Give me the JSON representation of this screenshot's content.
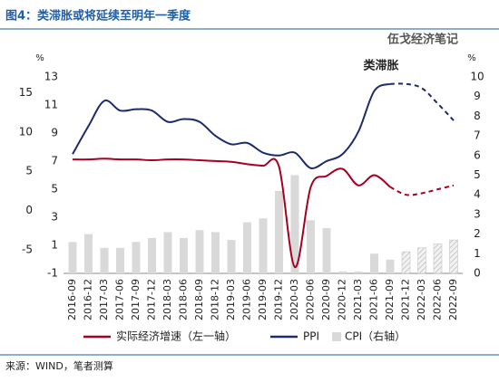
{
  "chart_data": {
    "type": "line",
    "title": "图4：类滞胀或将延续至明年一季度",
    "watermark": "伍戈经济笔记",
    "annotation": "类滞胀",
    "source": "来源：WIND，笔者测算",
    "y_unit": "%",
    "y2_unit": "%",
    "categories": [
      "2016-09",
      "2016-12",
      "2017-03",
      "2017-06",
      "2017-09",
      "2017-12",
      "2018-03",
      "2018-06",
      "2018-09",
      "2018-12",
      "2019-03",
      "2019-06",
      "2019-09",
      "2019-12",
      "2020-03",
      "2020-06",
      "2020-09",
      "2020-12",
      "2021-03",
      "2021-06",
      "2021-09",
      "2021-12",
      "2022-03",
      "2022-06",
      "2022-09"
    ],
    "forecast_from": 20,
    "series": [
      {
        "name": "实际经济增速（左一轴）",
        "color": "#a50021",
        "axis": "y3",
        "kind": "line",
        "values": [
          6.5,
          6.5,
          6.6,
          6.5,
          6.5,
          6.4,
          6.5,
          6.5,
          6.4,
          6.3,
          6.2,
          5.9,
          5.7,
          5.6,
          -7.2,
          3.0,
          4.4,
          5.3,
          3.2,
          4.5,
          3.0,
          2.0,
          2.2,
          2.7,
          3.2
        ]
      },
      {
        "name": "PPI",
        "color": "#1c2a6e",
        "axis": "y",
        "kind": "line",
        "values": [
          7.5,
          9.5,
          11.3,
          10.6,
          10.7,
          10.6,
          9.8,
          10.0,
          9.8,
          8.8,
          8.2,
          8.3,
          7.6,
          7.4,
          7.6,
          6.5,
          7.0,
          7.5,
          9.1,
          12.0,
          12.5,
          12.5,
          12.2,
          11.1,
          9.9
        ]
      },
      {
        "name": "CPI（右轴）",
        "color": "#d9d9d9",
        "axis": "y2",
        "kind": "bar",
        "values": [
          1.6,
          2.0,
          1.3,
          1.3,
          1.6,
          1.8,
          2.1,
          1.8,
          2.2,
          2.1,
          1.7,
          2.6,
          2.8,
          4.2,
          5.0,
          2.7,
          2.3,
          0.1,
          0.1,
          1.0,
          0.7,
          1.1,
          1.3,
          1.5,
          1.7
        ]
      }
    ],
    "ylim": [
      -1,
      13
    ],
    "yticks": [
      -1,
      1,
      3,
      5,
      7,
      9,
      11,
      13
    ],
    "y3lim": [
      -8,
      17
    ],
    "y3ticks": [
      -5,
      0,
      5,
      10,
      15
    ],
    "y2lim": [
      0,
      10
    ],
    "y2ticks": [
      0,
      1,
      2,
      3,
      4,
      5,
      6,
      7,
      8,
      9,
      10
    ]
  }
}
